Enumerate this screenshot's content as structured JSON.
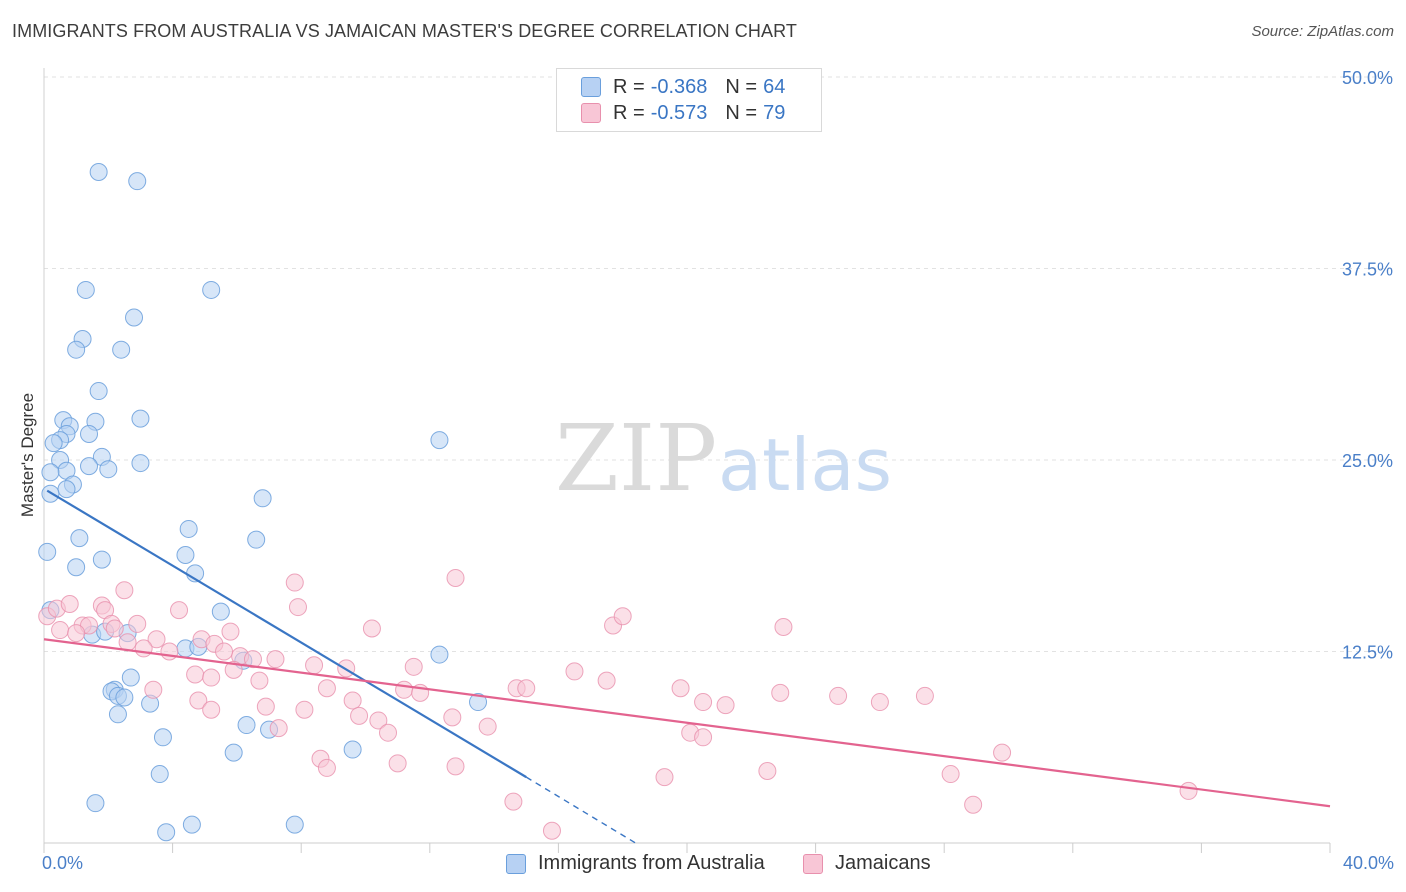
{
  "title": "IMMIGRANTS FROM AUSTRALIA VS JAMAICAN MASTER'S DEGREE CORRELATION CHART",
  "source": "Source: ZipAtlas.com",
  "watermark": {
    "zip": "ZIP",
    "atlas": "atlas"
  },
  "legend": {
    "r_label": "R =",
    "n_label": "N =",
    "series": [
      {
        "r": "-0.368",
        "n": "64"
      },
      {
        "r": "-0.573",
        "n": "79"
      }
    ]
  },
  "colors": {
    "blue_fill": "#b7d1f3",
    "blue_stroke": "#6a9fdc",
    "blue_line": "#3a76c4",
    "pink_fill": "#f8c6d6",
    "pink_stroke": "#e890ad",
    "pink_line": "#e3638f",
    "tick_text": "#4a7fc8",
    "grid": "#e2e2e2"
  },
  "chart_data": {
    "type": "scatter",
    "title": "IMMIGRANTS FROM AUSTRALIA VS JAMAICAN MASTER'S DEGREE CORRELATION CHART",
    "xlabel": "",
    "ylabel": "Master's Degree",
    "xlim": [
      0,
      40
    ],
    "ylim": [
      0,
      50
    ],
    "x_tick_labels": [
      {
        "value": 0,
        "label": "0.0%"
      },
      {
        "value": 40,
        "label": "40.0%"
      }
    ],
    "y_tick_labels": [
      {
        "value": 12.5,
        "label": "12.5%"
      },
      {
        "value": 25,
        "label": "25.0%"
      },
      {
        "value": 37.5,
        "label": "37.5%"
      },
      {
        "value": 50,
        "label": "50.0%"
      }
    ],
    "grid": true,
    "legend_position": "top-center",
    "series": [
      {
        "name": "Immigrants from Australia",
        "color": "#6a9fdc",
        "trend": {
          "x0": 0.1,
          "y0": 23.0,
          "x1": 15.0,
          "y1": 4.3,
          "dash_to_x": 18.4,
          "dash_to_y": 0.0
        },
        "points": [
          [
            1.7,
            43.8
          ],
          [
            2.9,
            43.2
          ],
          [
            1.3,
            36.1
          ],
          [
            5.2,
            36.1
          ],
          [
            2.8,
            34.3
          ],
          [
            1.2,
            32.9
          ],
          [
            1.0,
            32.2
          ],
          [
            2.4,
            32.2
          ],
          [
            1.7,
            29.5
          ],
          [
            0.6,
            27.6
          ],
          [
            0.8,
            27.2
          ],
          [
            1.6,
            27.5
          ],
          [
            3.0,
            27.7
          ],
          [
            0.7,
            26.7
          ],
          [
            0.5,
            26.3
          ],
          [
            1.4,
            26.7
          ],
          [
            0.3,
            26.1
          ],
          [
            12.3,
            26.3
          ],
          [
            0.5,
            25.0
          ],
          [
            1.8,
            25.2
          ],
          [
            3.0,
            24.8
          ],
          [
            1.4,
            24.6
          ],
          [
            2.0,
            24.4
          ],
          [
            0.7,
            24.3
          ],
          [
            0.2,
            24.2
          ],
          [
            0.9,
            23.4
          ],
          [
            0.7,
            23.1
          ],
          [
            0.2,
            22.8
          ],
          [
            6.8,
            22.5
          ],
          [
            4.5,
            20.5
          ],
          [
            1.1,
            19.9
          ],
          [
            6.6,
            19.8
          ],
          [
            0.1,
            19.0
          ],
          [
            4.4,
            18.8
          ],
          [
            1.8,
            18.5
          ],
          [
            1.0,
            18.0
          ],
          [
            4.7,
            17.6
          ],
          [
            5.5,
            15.1
          ],
          [
            0.2,
            15.2
          ],
          [
            1.5,
            13.6
          ],
          [
            1.9,
            13.8
          ],
          [
            2.6,
            13.7
          ],
          [
            4.4,
            12.7
          ],
          [
            4.8,
            12.8
          ],
          [
            12.3,
            12.3
          ],
          [
            6.2,
            11.9
          ],
          [
            2.7,
            10.8
          ],
          [
            2.2,
            10.0
          ],
          [
            2.1,
            9.9
          ],
          [
            2.3,
            9.6
          ],
          [
            2.5,
            9.5
          ],
          [
            3.3,
            9.1
          ],
          [
            13.5,
            9.2
          ],
          [
            2.3,
            8.4
          ],
          [
            6.3,
            7.7
          ],
          [
            7.0,
            7.4
          ],
          [
            3.7,
            6.9
          ],
          [
            9.6,
            6.1
          ],
          [
            5.9,
            5.9
          ],
          [
            3.6,
            4.5
          ],
          [
            1.6,
            2.6
          ],
          [
            3.8,
            0.7
          ],
          [
            4.6,
            1.2
          ],
          [
            7.8,
            1.2
          ]
        ]
      },
      {
        "name": "Jamaicans",
        "color": "#e890ad",
        "trend": {
          "x0": 0.0,
          "y0": 13.3,
          "x1": 40.0,
          "y1": 2.4
        },
        "points": [
          [
            0.1,
            14.8
          ],
          [
            0.4,
            15.3
          ],
          [
            0.8,
            15.6
          ],
          [
            1.2,
            14.2
          ],
          [
            0.5,
            13.9
          ],
          [
            1.8,
            15.5
          ],
          [
            1.9,
            15.2
          ],
          [
            2.5,
            16.5
          ],
          [
            1.4,
            14.2
          ],
          [
            2.1,
            14.3
          ],
          [
            2.9,
            14.3
          ],
          [
            3.5,
            13.3
          ],
          [
            4.2,
            15.2
          ],
          [
            2.6,
            13.1
          ],
          [
            3.1,
            12.7
          ],
          [
            4.9,
            13.3
          ],
          [
            5.3,
            13.0
          ],
          [
            5.8,
            13.8
          ],
          [
            6.1,
            12.2
          ],
          [
            5.6,
            12.5
          ],
          [
            6.5,
            12.0
          ],
          [
            7.2,
            12.0
          ],
          [
            7.8,
            17.0
          ],
          [
            7.9,
            15.4
          ],
          [
            8.4,
            11.6
          ],
          [
            9.4,
            11.4
          ],
          [
            10.2,
            14.0
          ],
          [
            11.2,
            10.0
          ],
          [
            11.5,
            11.5
          ],
          [
            12.8,
            17.3
          ],
          [
            14.7,
            10.1
          ],
          [
            15.0,
            10.1
          ],
          [
            16.5,
            11.2
          ],
          [
            17.7,
            14.2
          ],
          [
            18.0,
            14.8
          ],
          [
            17.5,
            10.6
          ],
          [
            19.8,
            10.1
          ],
          [
            20.5,
            9.2
          ],
          [
            21.2,
            9.0
          ],
          [
            20.1,
            7.2
          ],
          [
            20.5,
            6.9
          ],
          [
            22.5,
            4.7
          ],
          [
            19.3,
            4.3
          ],
          [
            23.0,
            14.1
          ],
          [
            22.9,
            9.8
          ],
          [
            24.7,
            9.6
          ],
          [
            27.4,
            9.6
          ],
          [
            26.0,
            9.2
          ],
          [
            28.2,
            4.5
          ],
          [
            28.9,
            2.5
          ],
          [
            29.8,
            5.9
          ],
          [
            35.6,
            3.4
          ],
          [
            3.4,
            10.0
          ],
          [
            4.7,
            11.0
          ],
          [
            5.2,
            10.8
          ],
          [
            4.8,
            9.3
          ],
          [
            5.2,
            8.7
          ],
          [
            5.9,
            11.3
          ],
          [
            6.7,
            10.6
          ],
          [
            6.9,
            8.9
          ],
          [
            7.3,
            7.5
          ],
          [
            8.1,
            8.7
          ],
          [
            8.8,
            10.1
          ],
          [
            8.6,
            5.5
          ],
          [
            8.8,
            4.9
          ],
          [
            9.6,
            9.3
          ],
          [
            9.8,
            8.3
          ],
          [
            10.4,
            8.0
          ],
          [
            10.7,
            7.2
          ],
          [
            11.0,
            5.2
          ],
          [
            12.7,
            8.2
          ],
          [
            12.8,
            5.0
          ],
          [
            13.8,
            7.6
          ],
          [
            14.6,
            2.7
          ],
          [
            15.8,
            0.8
          ],
          [
            11.7,
            9.8
          ],
          [
            3.9,
            12.5
          ],
          [
            2.2,
            14.0
          ],
          [
            1.0,
            13.7
          ]
        ]
      }
    ]
  },
  "bottom_legend": [
    "Immigrants from Australia",
    "Jamaicans"
  ]
}
